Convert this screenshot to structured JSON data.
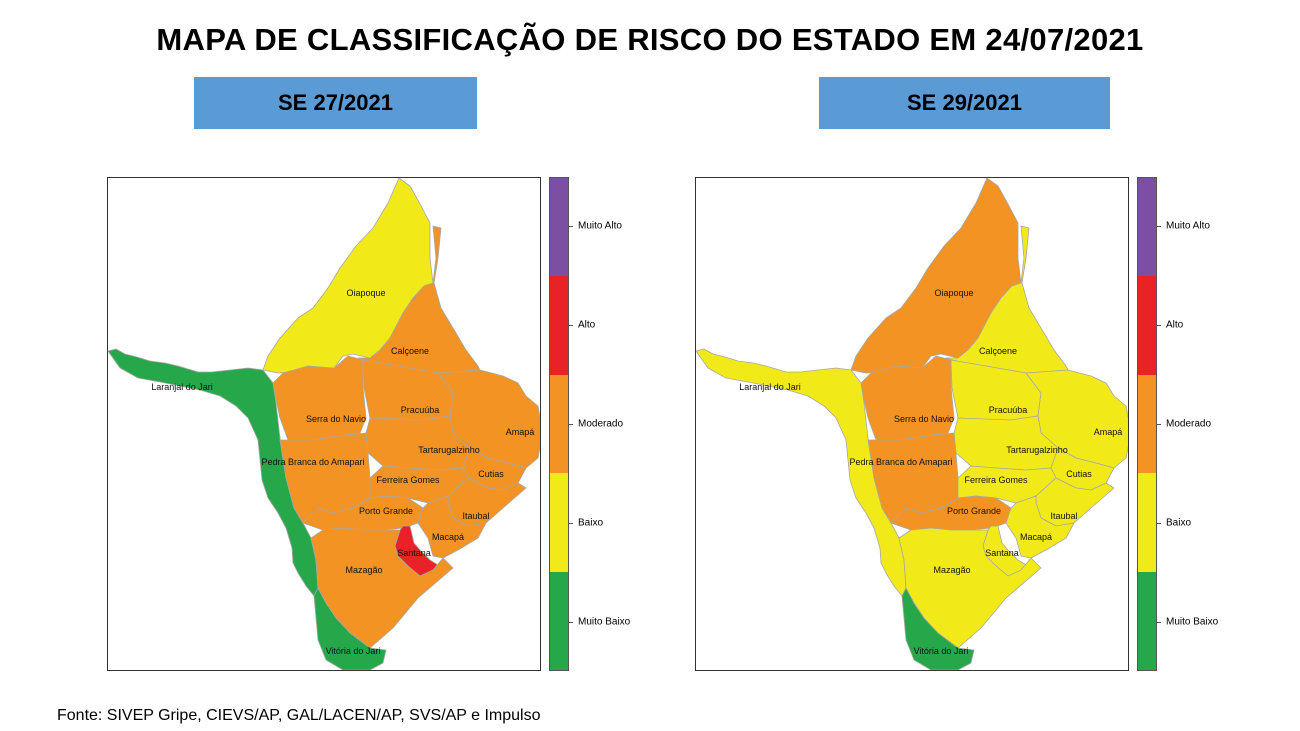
{
  "title": "MAPA DE CLASSIFICAÇÃO DE RISCO DO ESTADO EM 24/07/2021",
  "source": "Fonte: SIVEP Gripe, CIEVS/AP, GAL/LACEN/AP, SVS/AP e Impulso",
  "colors": {
    "Muito Alto": "#7d4fa2",
    "Alto": "#e92228",
    "Moderado": "#f39323",
    "Baixo": "#f2ea18",
    "Muito Baixo": "#26a84a",
    "border": "#a7a7a7"
  },
  "legend": {
    "levels": [
      "Muito Alto",
      "Alto",
      "Moderado",
      "Baixo",
      "Muito Baixo"
    ]
  },
  "municipality_names": {
    "oiapoque": "Oiapoque",
    "calcoene": "Calçoene",
    "laranjal": "Laranjal do Jari",
    "serra": "Serra do Navio",
    "pracuuba": "Pracuúba",
    "amapa": "Amapá",
    "tartarugalzinho": "Tartarugalzinho",
    "pedra": "Pedra Branca do Amapari",
    "cutias": "Cutias",
    "ferreira": "Ferreira Gomes",
    "porto": "Porto Grande",
    "itaubal": "Itaubal",
    "macapa": "Macapá",
    "santana": "Santana",
    "mazagao": "Mazagão",
    "vitoria": "Vitória do Jari"
  },
  "maps": [
    {
      "week": "SE 27/2021",
      "risk": {
        "oiapoque": "Baixo",
        "calcoene": "Moderado",
        "laranjal": "Muito Baixo",
        "serra": "Moderado",
        "pracuuba": "Moderado",
        "amapa": "Moderado",
        "tartarugalzinho": "Moderado",
        "pedra": "Moderado",
        "cutias": "Moderado",
        "ferreira": "Moderado",
        "porto": "Moderado",
        "itaubal": "Moderado",
        "macapa": "Moderado",
        "santana": "Alto",
        "mazagao": "Moderado",
        "vitoria": "Muito Baixo"
      }
    },
    {
      "week": "SE 29/2021",
      "risk": {
        "oiapoque": "Moderado",
        "calcoene": "Baixo",
        "laranjal": "Baixo",
        "serra": "Moderado",
        "pracuuba": "Baixo",
        "amapa": "Baixo",
        "tartarugalzinho": "Baixo",
        "pedra": "Moderado",
        "cutias": "Baixo",
        "ferreira": "Baixo",
        "porto": "Moderado",
        "itaubal": "Baixo",
        "macapa": "Baixo",
        "santana": "Baixo",
        "mazagao": "Baixo",
        "vitoria": "Muito Baixo"
      }
    }
  ]
}
